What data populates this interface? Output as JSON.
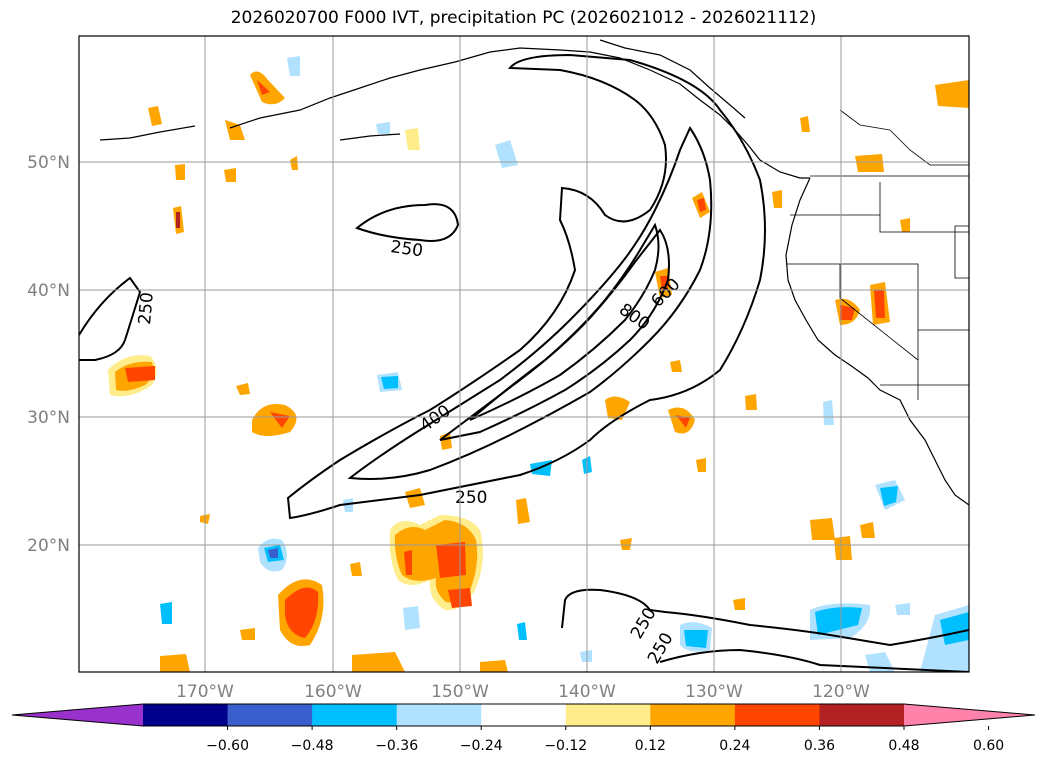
{
  "title": "2026020700 F000 IVT, precipitation PC (2026021012 - 2026021112)",
  "map": {
    "lat_labels": [
      "50°N",
      "40°N",
      "30°N",
      "20°N"
    ],
    "lon_labels": [
      "170°W",
      "160°W",
      "150°W",
      "140°W",
      "130°W",
      "120°W"
    ],
    "contour_labels": [
      "250",
      "250",
      "400",
      "800",
      "600",
      "250",
      "250",
      "250"
    ]
  },
  "colorbar": {
    "ticks": [
      "−0.60",
      "−0.48",
      "−0.36",
      "−0.24",
      "−0.12",
      "0.12",
      "0.24",
      "0.36",
      "0.48",
      "0.60"
    ],
    "colors": [
      "#9932cc",
      "#00008b",
      "#3a5fcd",
      "#00bfff",
      "#b0e2ff",
      "#ffffff",
      "#ffec8b",
      "#ffa500",
      "#ff4500",
      "#b22222",
      "#ff82ab"
    ]
  }
}
